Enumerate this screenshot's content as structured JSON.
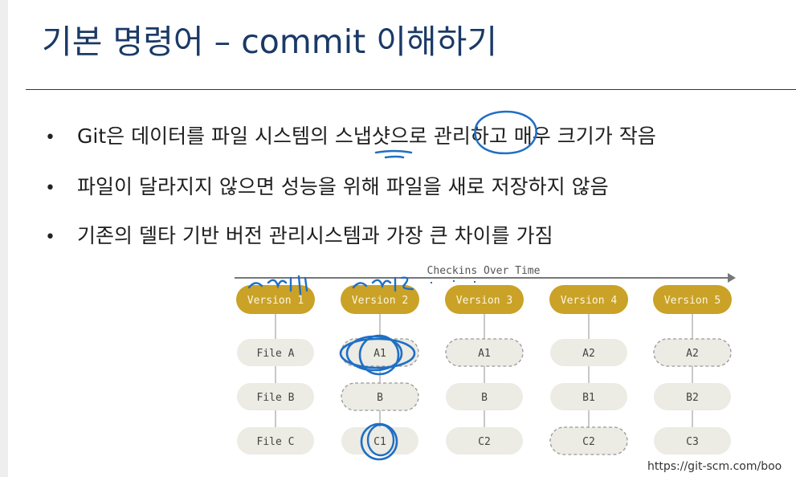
{
  "slide": {
    "title": "기본 명령어 – commit 이해하기",
    "bullets": [
      "Git은 데이터를 파일 시스템의 스냅샷으로 관리하고 매우 크기가 작음",
      "파일이 달라지지 않으면 성능을 위해 파일을 새로 저장하지 않음",
      "기존의 델타 기반 버전 관리시스템과 가장 큰 차이를 가짐"
    ],
    "bullet_symbol": "•",
    "source_caption": "https://git-scm.com/boo"
  },
  "diagram": {
    "axis_label": "Checkins Over Time",
    "versions": [
      "Version 1",
      "Version 2",
      "Version 3",
      "Version 4",
      "Version 5"
    ],
    "rows": [
      [
        "File A",
        "A1",
        "A1",
        "A2",
        "A2"
      ],
      [
        "File B",
        "B",
        "B",
        "B1",
        "B2"
      ],
      [
        "File C",
        "C1",
        "C2",
        "C2",
        "C3"
      ]
    ],
    "dashed_reference": [
      [
        false,
        true,
        true,
        false,
        true
      ],
      [
        false,
        true,
        false,
        false,
        false
      ],
      [
        false,
        false,
        false,
        true,
        false
      ]
    ],
    "handwritten_annotations": [
      "커밋1",
      "커밋2"
    ],
    "colors": {
      "version_fill": "#c9a227",
      "version_text": "#fdf6dc",
      "node_fill": "#ecebe4",
      "node_text": "#444444",
      "dashed_stroke": "#9a9a9a",
      "ink": "#1f6fc4",
      "axis": "#777777"
    }
  }
}
